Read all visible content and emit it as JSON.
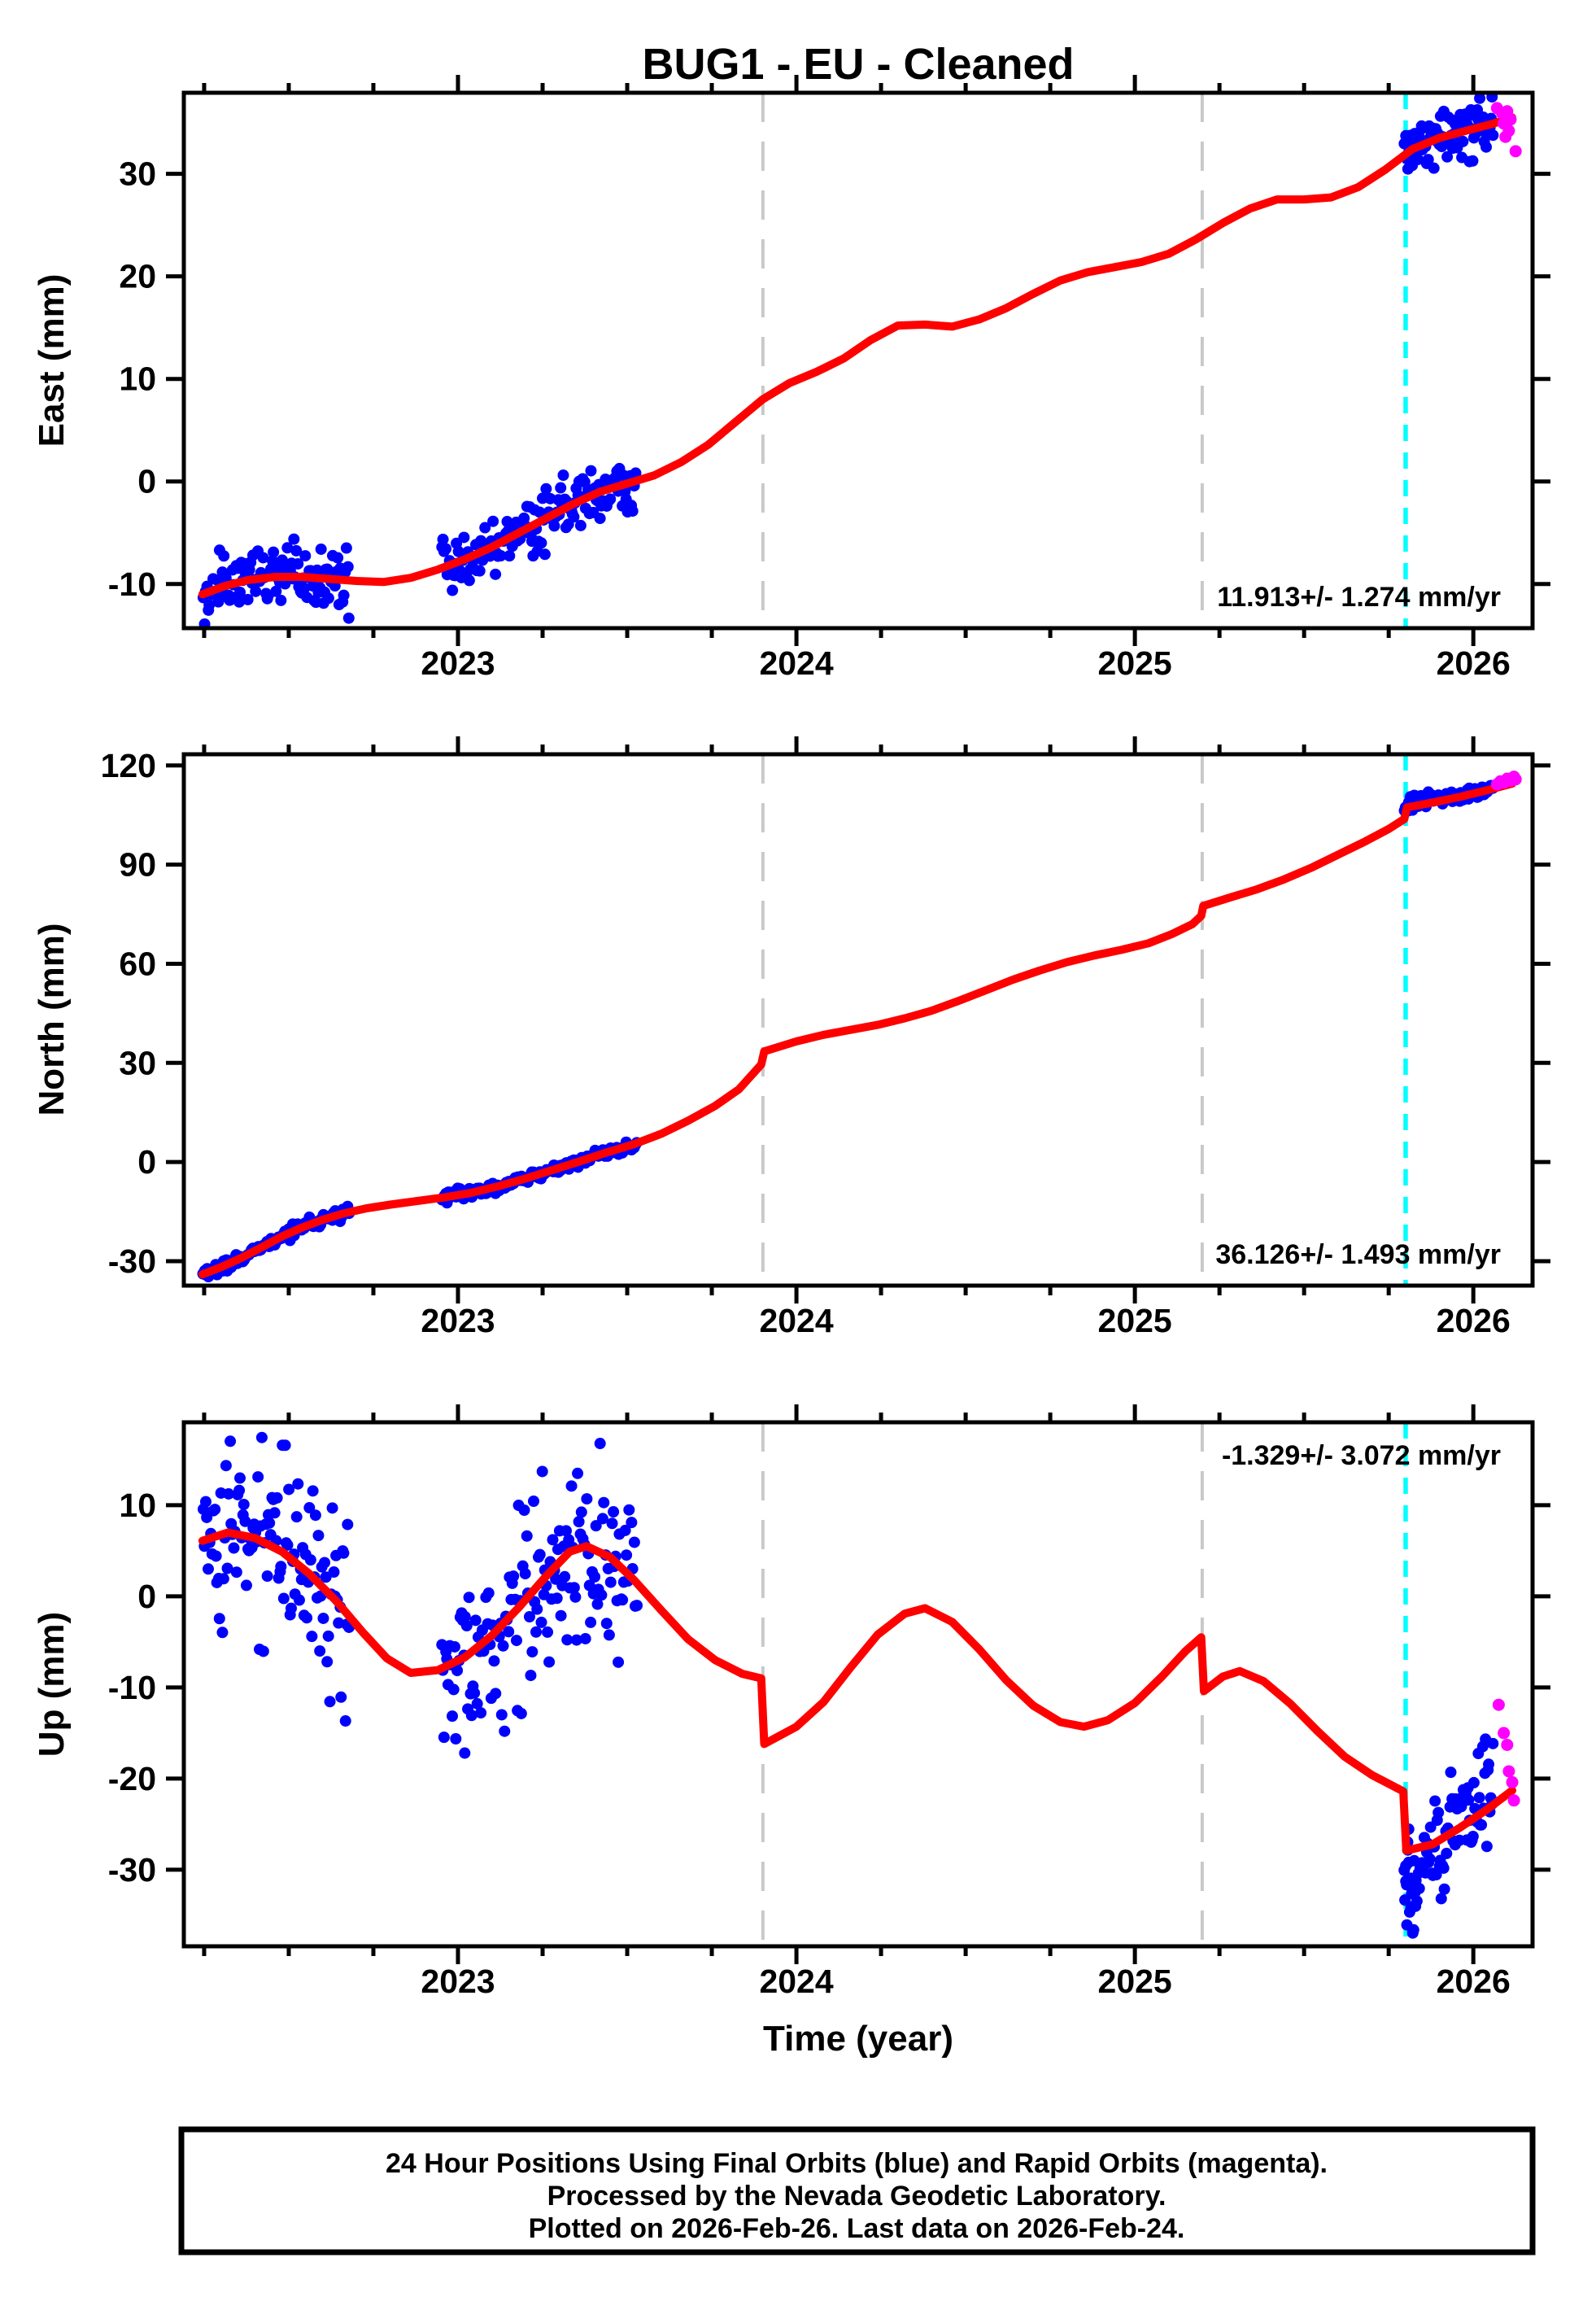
{
  "title": "BUG1 - EU - Cleaned",
  "xlabel": "Time (year)",
  "footer": {
    "line1": "24 Hour Positions Using Final Orbits (blue) and Rapid Orbits (magenta).",
    "line2": "Processed by the Nevada Geodetic Laboratory.",
    "line3": "Plotted on 2026-Feb-26. Last data on 2026-Feb-24."
  },
  "colors": {
    "final_orbits_blue": "#0000ff",
    "rapid_orbits_magenta": "#ff00ff",
    "model_fit_red": "#ff0000",
    "event_line_gray": "#c9c9c9",
    "last_data_cyan": "#00ffff",
    "frame_black": "#000000"
  },
  "chart_data": {
    "type": "scatter",
    "title": "BUG1 - EU - Cleaned",
    "xlabel": "Time (year)",
    "x_axis": {
      "min": 2022.19,
      "max": 2026.175,
      "major_ticks": [
        2023,
        2024,
        2025,
        2026
      ],
      "minor_tick_interval": 0.25
    },
    "event_lines": {
      "gray_dashed": [
        2023.901,
        2025.199
      ],
      "cyan_dashed": [
        2025.8
      ]
    },
    "legend": {
      "blue": "Final Orbits (24 hr positions)",
      "magenta": "Rapid Orbits",
      "red": "model fit",
      "cyan": "last data epoch",
      "gray": "step/event epochs"
    },
    "panels": [
      {
        "id": "east",
        "ylabel": "East (mm)",
        "rate_annotation": "11.913+/- 1.274 mm/yr",
        "annotation_corner": "bottom-right",
        "ylim": [
          -14.3,
          37.9
        ],
        "yticks": [
          -10,
          0,
          10,
          20,
          30
        ],
        "model_line": [
          [
            2022.245,
            -11.0
          ],
          [
            2022.31,
            -10.2
          ],
          [
            2022.38,
            -9.6
          ],
          [
            2022.46,
            -9.3
          ],
          [
            2022.54,
            -9.3
          ],
          [
            2022.62,
            -9.5
          ],
          [
            2022.7,
            -9.7
          ],
          [
            2022.78,
            -9.8
          ],
          [
            2022.86,
            -9.4
          ],
          [
            2022.94,
            -8.6
          ],
          [
            2023.02,
            -7.6
          ],
          [
            2023.1,
            -6.4
          ],
          [
            2023.18,
            -5.0
          ],
          [
            2023.26,
            -3.6
          ],
          [
            2023.34,
            -2.2
          ],
          [
            2023.42,
            -1.0
          ],
          [
            2023.5,
            -0.2
          ],
          [
            2023.58,
            0.6
          ],
          [
            2023.66,
            1.9
          ],
          [
            2023.74,
            3.6
          ],
          [
            2023.82,
            5.8
          ],
          [
            2023.9,
            8.0
          ],
          [
            2023.98,
            9.6
          ],
          [
            2024.06,
            10.7
          ],
          [
            2024.14,
            12.0
          ],
          [
            2024.22,
            13.8
          ],
          [
            2024.3,
            15.2
          ],
          [
            2024.38,
            15.3
          ],
          [
            2024.46,
            15.1
          ],
          [
            2024.54,
            15.8
          ],
          [
            2024.62,
            16.9
          ],
          [
            2024.7,
            18.3
          ],
          [
            2024.78,
            19.6
          ],
          [
            2024.86,
            20.4
          ],
          [
            2024.94,
            20.9
          ],
          [
            2025.02,
            21.4
          ],
          [
            2025.1,
            22.2
          ],
          [
            2025.18,
            23.6
          ],
          [
            2025.26,
            25.2
          ],
          [
            2025.34,
            26.6
          ],
          [
            2025.42,
            27.5
          ],
          [
            2025.5,
            27.5
          ],
          [
            2025.58,
            27.7
          ],
          [
            2025.66,
            28.7
          ],
          [
            2025.74,
            30.4
          ],
          [
            2025.82,
            32.4
          ],
          [
            2025.9,
            33.5
          ],
          [
            2025.98,
            34.2
          ],
          [
            2026.06,
            34.9
          ],
          [
            2026.115,
            35.5
          ]
        ],
        "final_clusters": [
          {
            "t0": 2022.245,
            "t1": 2022.68,
            "n": 115,
            "sigma": 1.6
          },
          {
            "t0": 2022.95,
            "t1": 2023.53,
            "n": 150,
            "sigma": 1.5
          },
          {
            "t0": 2025.795,
            "t1": 2026.06,
            "n": 80,
            "sigma": 1.4,
            "offset": [
              0.5,
              0
            ]
          }
        ],
        "final_outliers": [],
        "rapid_points": [
          [
            2026.07,
            36.4
          ],
          [
            2026.085,
            35.9
          ],
          [
            2026.09,
            34.9
          ],
          [
            2026.1,
            36.1
          ],
          [
            2026.105,
            34.2
          ],
          [
            2026.095,
            33.6
          ],
          [
            2026.11,
            35.3
          ],
          [
            2026.125,
            32.2
          ]
        ]
      },
      {
        "id": "north",
        "ylabel": "North (mm)",
        "rate_annotation": "36.126+/- 1.493 mm/yr",
        "annotation_corner": "bottom-right",
        "ylim": [
          -37.4,
          123.4
        ],
        "yticks": [
          -30,
          0,
          30,
          60,
          90,
          120
        ],
        "model_line": [
          [
            2022.245,
            -34.0
          ],
          [
            2022.3,
            -31.8
          ],
          [
            2022.36,
            -29.0
          ],
          [
            2022.42,
            -25.8
          ],
          [
            2022.48,
            -22.5
          ],
          [
            2022.54,
            -19.8
          ],
          [
            2022.6,
            -17.5
          ],
          [
            2022.66,
            -15.6
          ],
          [
            2022.73,
            -14.0
          ],
          [
            2022.8,
            -12.9
          ],
          [
            2022.88,
            -11.8
          ],
          [
            2022.96,
            -10.7
          ],
          [
            2023.04,
            -9.3
          ],
          [
            2023.12,
            -7.3
          ],
          [
            2023.2,
            -5.0
          ],
          [
            2023.28,
            -2.4
          ],
          [
            2023.36,
            0.2
          ],
          [
            2023.44,
            2.9
          ],
          [
            2023.52,
            5.4
          ],
          [
            2023.6,
            8.5
          ],
          [
            2023.68,
            12.5
          ],
          [
            2023.76,
            17.0
          ],
          [
            2023.83,
            22.0
          ],
          [
            2023.896,
            29.5
          ],
          [
            2023.905,
            33.5
          ],
          [
            2024.0,
            36.5
          ],
          [
            2024.08,
            38.5
          ],
          [
            2024.16,
            40.0
          ],
          [
            2024.24,
            41.5
          ],
          [
            2024.32,
            43.5
          ],
          [
            2024.4,
            45.8
          ],
          [
            2024.48,
            48.8
          ],
          [
            2024.56,
            52.0
          ],
          [
            2024.64,
            55.2
          ],
          [
            2024.72,
            58.0
          ],
          [
            2024.8,
            60.5
          ],
          [
            2024.88,
            62.5
          ],
          [
            2024.96,
            64.2
          ],
          [
            2025.04,
            66.2
          ],
          [
            2025.11,
            69.0
          ],
          [
            2025.17,
            72.0
          ],
          [
            2025.196,
            74.5
          ],
          [
            2025.202,
            77.5
          ],
          [
            2025.28,
            80.0
          ],
          [
            2025.36,
            82.5
          ],
          [
            2025.44,
            85.5
          ],
          [
            2025.52,
            89.0
          ],
          [
            2025.6,
            93.0
          ],
          [
            2025.68,
            97.0
          ],
          [
            2025.75,
            100.8
          ],
          [
            2025.796,
            103.8
          ],
          [
            2025.804,
            107.3
          ],
          [
            2025.88,
            108.8
          ],
          [
            2025.96,
            110.5
          ],
          [
            2026.04,
            112.5
          ],
          [
            2026.115,
            114.5
          ]
        ],
        "final_clusters": [
          {
            "t0": 2022.245,
            "t1": 2022.68,
            "n": 115,
            "sigma": 1.0
          },
          {
            "t0": 2022.95,
            "t1": 2023.53,
            "n": 150,
            "sigma": 0.9
          },
          {
            "t0": 2025.795,
            "t1": 2026.06,
            "n": 80,
            "sigma": 1.1,
            "offset": [
              1.5,
              0
            ]
          }
        ],
        "final_outliers": [],
        "rapid_points": [
          [
            2026.07,
            114.3
          ],
          [
            2026.08,
            115.2
          ],
          [
            2026.09,
            114.8
          ],
          [
            2026.1,
            116.0
          ],
          [
            2026.11,
            115.4
          ],
          [
            2026.12,
            116.6
          ],
          [
            2026.125,
            115.8
          ]
        ]
      },
      {
        "id": "up",
        "ylabel": "Up (mm)",
        "rate_annotation": "-1.329+/- 3.072 mm/yr",
        "annotation_corner": "top-right",
        "ylim": [
          -38.4,
          19.1
        ],
        "yticks": [
          -30,
          -20,
          -10,
          0,
          10
        ],
        "model_line": [
          [
            2022.245,
            6.1
          ],
          [
            2022.32,
            7.0
          ],
          [
            2022.4,
            6.4
          ],
          [
            2022.48,
            4.9
          ],
          [
            2022.56,
            2.5
          ],
          [
            2022.64,
            -0.5
          ],
          [
            2022.72,
            -4.0
          ],
          [
            2022.79,
            -6.8
          ],
          [
            2022.86,
            -8.4
          ],
          [
            2022.94,
            -8.1
          ],
          [
            2023.02,
            -6.7
          ],
          [
            2023.1,
            -4.3
          ],
          [
            2023.18,
            -1.2
          ],
          [
            2023.26,
            2.2
          ],
          [
            2023.33,
            4.9
          ],
          [
            2023.38,
            5.5
          ],
          [
            2023.45,
            4.3
          ],
          [
            2023.52,
            1.8
          ],
          [
            2023.6,
            -1.5
          ],
          [
            2023.68,
            -4.7
          ],
          [
            2023.76,
            -7.0
          ],
          [
            2023.84,
            -8.5
          ],
          [
            2023.896,
            -9.0
          ],
          [
            2023.905,
            -16.2
          ],
          [
            2024.0,
            -14.3
          ],
          [
            2024.08,
            -11.6
          ],
          [
            2024.16,
            -7.8
          ],
          [
            2024.24,
            -4.2
          ],
          [
            2024.32,
            -1.9
          ],
          [
            2024.38,
            -1.3
          ],
          [
            2024.46,
            -2.8
          ],
          [
            2024.54,
            -5.8
          ],
          [
            2024.62,
            -9.2
          ],
          [
            2024.7,
            -12.0
          ],
          [
            2024.78,
            -13.8
          ],
          [
            2024.85,
            -14.3
          ],
          [
            2024.92,
            -13.6
          ],
          [
            2025.0,
            -11.7
          ],
          [
            2025.08,
            -8.8
          ],
          [
            2025.15,
            -6.0
          ],
          [
            2025.196,
            -4.5
          ],
          [
            2025.204,
            -10.4
          ],
          [
            2025.26,
            -8.8
          ],
          [
            2025.31,
            -8.2
          ],
          [
            2025.38,
            -9.3
          ],
          [
            2025.46,
            -11.8
          ],
          [
            2025.54,
            -14.8
          ],
          [
            2025.62,
            -17.6
          ],
          [
            2025.7,
            -19.6
          ],
          [
            2025.793,
            -21.4
          ],
          [
            2025.802,
            -27.9
          ],
          [
            2025.88,
            -27.2
          ],
          [
            2025.96,
            -25.4
          ],
          [
            2026.04,
            -23.4
          ],
          [
            2026.115,
            -21.3
          ]
        ],
        "final_clusters": [
          {
            "t0": 2022.245,
            "t1": 2022.68,
            "n": 115,
            "sigma": 5.2
          },
          {
            "t0": 2022.95,
            "t1": 2023.53,
            "n": 150,
            "sigma": 5.2
          },
          {
            "t0": 2025.795,
            "t1": 2026.06,
            "n": 85,
            "sigma": 3.2,
            "offset": [
              -5,
              4
            ]
          },
          {
            "t0": 2025.797,
            "t1": 2025.83,
            "n": 12,
            "sigma": 3.0,
            "offset": [
              -6,
              -6
            ]
          }
        ],
        "final_outliers": [
          [
            2023.02,
            -17.2
          ]
        ],
        "rapid_points": [
          [
            2026.075,
            -11.9
          ],
          [
            2026.09,
            -15.0
          ],
          [
            2026.1,
            -16.3
          ],
          [
            2026.105,
            -19.2
          ],
          [
            2026.115,
            -20.4
          ],
          [
            2026.12,
            -22.4
          ]
        ]
      }
    ]
  },
  "layout_note": "three stacked GPS position component panels, daily solutions"
}
